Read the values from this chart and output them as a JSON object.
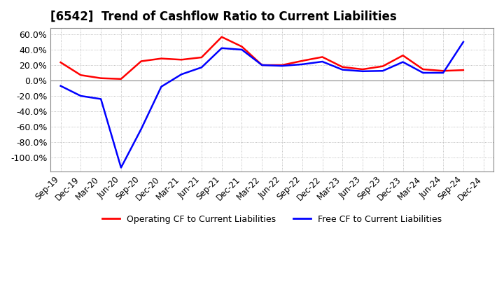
{
  "title": "[6542]  Trend of Cashflow Ratio to Current Liabilities",
  "title_fontsize": 12,
  "legend_labels": [
    "Operating CF to Current Liabilities",
    "Free CF to Current Liabilities"
  ],
  "legend_colors": [
    "#ff0000",
    "#0000ff"
  ],
  "x_labels": [
    "Sep-19",
    "Dec-19",
    "Mar-20",
    "Jun-20",
    "Sep-20",
    "Dec-20",
    "Mar-21",
    "Jun-21",
    "Sep-21",
    "Dec-21",
    "Mar-22",
    "Jun-22",
    "Sep-22",
    "Dec-22",
    "Mar-23",
    "Jun-23",
    "Sep-23",
    "Dec-23",
    "Mar-24",
    "Jun-24",
    "Sep-24",
    "Dec-24"
  ],
  "operating_cf": [
    0.235,
    0.07,
    0.03,
    0.02,
    0.25,
    0.285,
    0.27,
    0.3,
    0.565,
    0.44,
    0.2,
    0.2,
    0.255,
    0.305,
    0.175,
    0.145,
    0.185,
    0.325,
    0.145,
    0.125,
    0.135,
    null
  ],
  "free_cf": [
    -0.07,
    -0.2,
    -0.24,
    -1.13,
    -0.63,
    -0.08,
    0.08,
    0.17,
    0.42,
    0.4,
    0.2,
    0.19,
    0.21,
    0.245,
    0.14,
    0.12,
    0.125,
    0.24,
    0.1,
    0.1,
    0.5,
    null
  ],
  "ylim_min": -1.18,
  "ylim_max": 0.68,
  "yticks": [
    0.6,
    0.4,
    0.2,
    0.0,
    -0.2,
    -0.4,
    -0.6,
    -0.8,
    -1.0
  ],
  "background_color": "#ffffff",
  "grid_color": "#aaaaaa",
  "plot_bg_color": "#ffffff"
}
